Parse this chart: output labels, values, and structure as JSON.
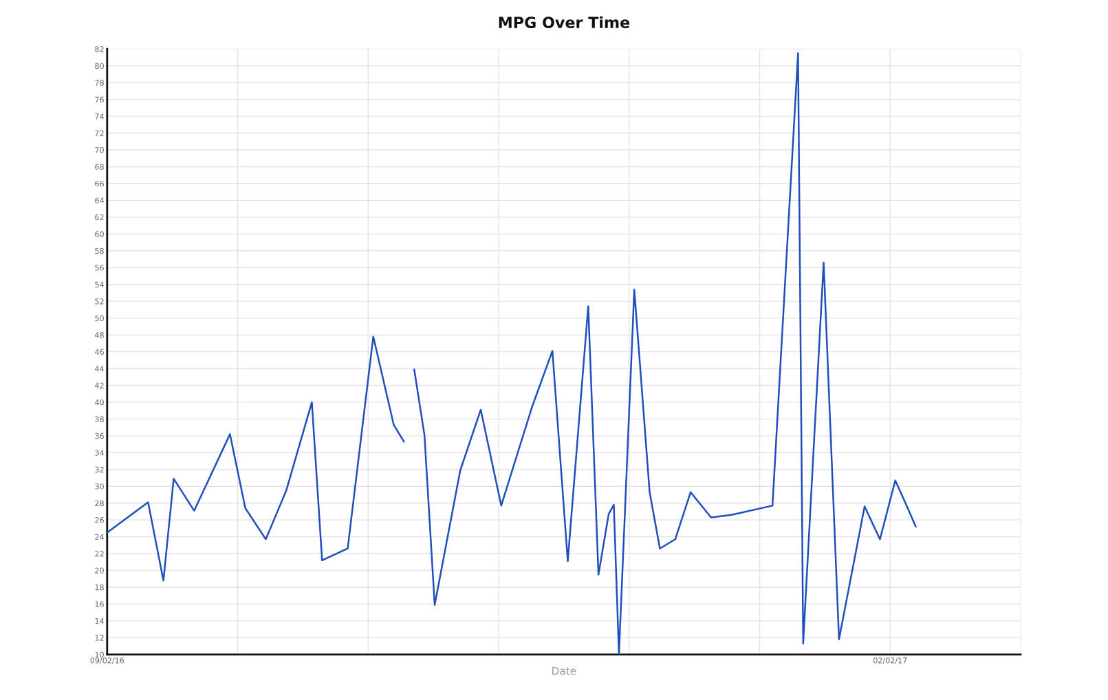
{
  "chart_data": {
    "type": "line",
    "title": "MPG Over Time",
    "xlabel": "Date",
    "x": [
      "2016-09-02",
      "2016-09-10",
      "2016-09-13",
      "2016-09-15",
      "2016-09-19",
      "2016-09-26",
      "2016-09-29",
      "2016-10-03",
      "2016-10-07",
      "2016-10-12",
      "2016-10-14",
      "2016-10-19",
      "2016-10-24",
      "2016-10-28",
      "2016-10-30",
      "2016-10-31",
      "2016-11-01",
      "2016-11-03",
      "2016-11-05",
      "2016-11-10",
      "2016-11-14",
      "2016-11-18",
      "2016-11-24",
      "2016-11-28",
      "2016-12-01",
      "2016-12-05",
      "2016-12-07",
      "2016-12-09",
      "2016-12-10",
      "2016-12-11",
      "2016-12-14",
      "2016-12-17",
      "2016-12-19",
      "2016-12-22",
      "2016-12-25",
      "2016-12-29",
      "2017-01-02",
      "2017-01-10",
      "2017-01-15",
      "2017-01-16",
      "2017-01-20",
      "2017-01-23",
      "2017-01-28",
      "2017-01-31",
      "2017-02-03",
      "2017-02-05",
      "2017-02-07"
    ],
    "series": [
      {
        "color": "#1f4fbf",
        "values": [
          24.5,
          28.1,
          18.8,
          30.9,
          27.1,
          36.2,
          27.4,
          23.7,
          29.5,
          40.0,
          21.2,
          22.6,
          47.8,
          37.3,
          35.3,
          null,
          43.9,
          36.1,
          15.9,
          31.9,
          39.1,
          27.7,
          39.4,
          46.1,
          21.1,
          51.4,
          19.5,
          26.7,
          27.8,
          10,
          53.4,
          29.3,
          22.6,
          23.7,
          29.3,
          26.3,
          26.6,
          27.7,
          81.5,
          11.3,
          56.6,
          11.8,
          27.6,
          23.7,
          30.7,
          28.0,
          25.2
        ]
      }
    ],
    "xlim": [
      "2016-09-02",
      "2017-02-27T12:00"
    ],
    "xticks": [
      {
        "value": "2016-09-02",
        "label": "09/02/16"
      },
      {
        "value": "2016-09-27T12:00",
        "label": null
      },
      {
        "value": "2016-10-23",
        "label": null
      },
      {
        "value": "2016-11-17T12:00",
        "label": null
      },
      {
        "value": "2016-12-13",
        "label": null
      },
      {
        "value": "2017-01-07T12:00",
        "label": null
      },
      {
        "value": "2017-02-02",
        "label": "02/02/17"
      },
      {
        "value": "2017-02-27T12:00",
        "label": null
      }
    ],
    "ylim": [
      10,
      82
    ],
    "yticks": [
      10,
      12,
      14,
      16,
      18,
      20,
      22,
      24,
      26,
      28,
      30,
      32,
      34,
      36,
      38,
      40,
      42,
      44,
      46,
      48,
      50,
      52,
      54,
      56,
      58,
      60,
      62,
      64,
      66,
      68,
      70,
      72,
      74,
      76,
      78,
      80,
      82
    ],
    "grid": true,
    "legend": false,
    "marker": "none",
    "line_style": "solid"
  }
}
